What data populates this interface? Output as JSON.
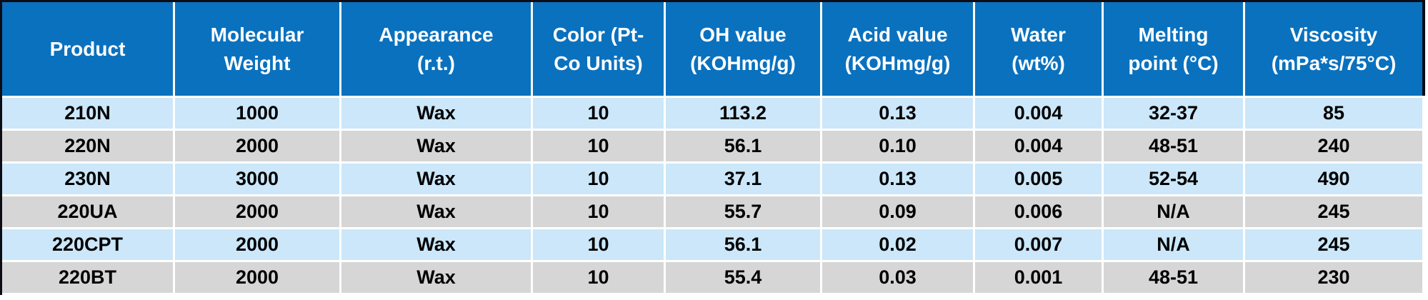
{
  "colors": {
    "header_bg": "#0A71BE",
    "header_text": "#FFFFFF",
    "row_light": "#CBE7F9",
    "row_alt": "#D6D6D6",
    "body_text": "#000000",
    "border_dark": "#0C0C16"
  },
  "header": {
    "columns": [
      {
        "l1": "Product",
        "l2": ""
      },
      {
        "l1": "Molecular",
        "l2": "Weight"
      },
      {
        "l1": "Appearance",
        "l2": "(r.t.)"
      },
      {
        "l1": "Color (Pt-",
        "l2": "Co Units)"
      },
      {
        "l1": "OH value",
        "l2": "(KOHmg/g)"
      },
      {
        "l1": "Acid value",
        "l2": "(KOHmg/g)"
      },
      {
        "l1": "Water",
        "l2": "(wt%)"
      },
      {
        "l1": "Melting",
        "l2": "point (°C)"
      },
      {
        "l1": "Viscosity",
        "l2": "(mPa*s/75°C)"
      }
    ]
  },
  "chart_data": {
    "type": "table",
    "columns": [
      "Product",
      "Molecular Weight",
      "Appearance (r.t.)",
      "Color (Pt-Co Units)",
      "OH value (KOHmg/g)",
      "Acid value (KOHmg/g)",
      "Water (wt%)",
      "Melting point (°C)",
      "Viscosity (mPa*s/75°C)"
    ],
    "rows": [
      [
        "210N",
        "1000",
        "Wax",
        "10",
        "113.2",
        "0.13",
        "0.004",
        "32-37",
        "85"
      ],
      [
        "220N",
        "2000",
        "Wax",
        "10",
        "56.1",
        "0.10",
        "0.004",
        "48-51",
        "240"
      ],
      [
        "230N",
        "3000",
        "Wax",
        "10",
        "37.1",
        "0.13",
        "0.005",
        "52-54",
        "490"
      ],
      [
        "220UA",
        "2000",
        "Wax",
        "10",
        "55.7",
        "0.09",
        "0.006",
        "N/A",
        "245"
      ],
      [
        "220CPT",
        "2000",
        "Wax",
        "10",
        "56.1",
        "0.02",
        "0.007",
        "N/A",
        "245"
      ],
      [
        "220BT",
        "2000",
        "Wax",
        "10",
        "55.4",
        "0.03",
        "0.001",
        "48-51",
        "230"
      ]
    ]
  }
}
